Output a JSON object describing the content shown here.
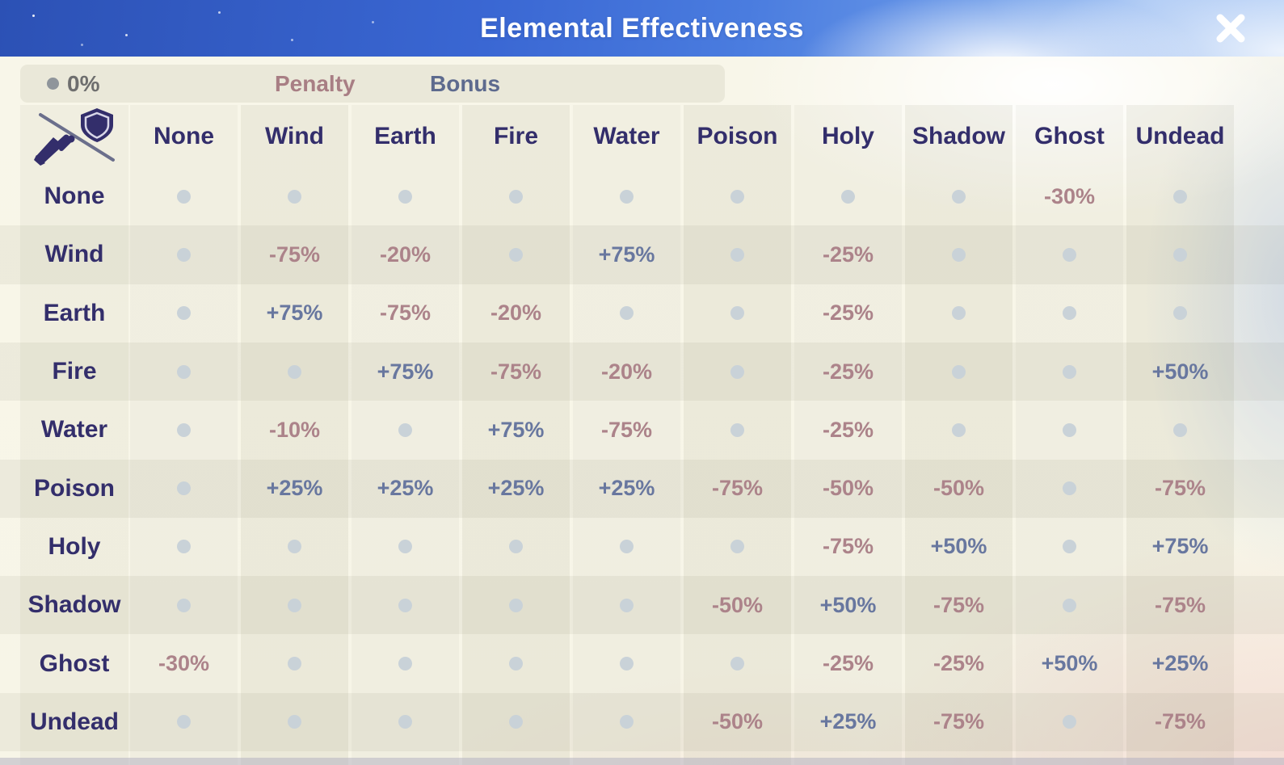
{
  "title": "Elemental Effectiveness",
  "legend": {
    "zero": "0%",
    "penalty": "Penalty",
    "bonus": "Bonus"
  },
  "table": {
    "corner_icon": "sword-vs-shield",
    "columns": [
      "None",
      "Wind",
      "Earth",
      "Fire",
      "Water",
      "Poison",
      "Holy",
      "Shadow",
      "Ghost",
      "Undead"
    ],
    "rows": [
      "None",
      "Wind",
      "Earth",
      "Fire",
      "Water",
      "Poison",
      "Holy",
      "Shadow",
      "Ghost",
      "Undead"
    ],
    "zero_symbol": "dot",
    "cells": [
      [
        "",
        "",
        "",
        "",
        "",
        "",
        "",
        "",
        "-30%",
        ""
      ],
      [
        "",
        "-75%",
        "-20%",
        "",
        "+75%",
        "",
        "-25%",
        "",
        "",
        ""
      ],
      [
        "",
        "+75%",
        "-75%",
        "-20%",
        "",
        "",
        "-25%",
        "",
        "",
        ""
      ],
      [
        "",
        "",
        "+75%",
        "-75%",
        "-20%",
        "",
        "-25%",
        "",
        "",
        "+50%"
      ],
      [
        "",
        "-10%",
        "",
        "+75%",
        "-75%",
        "",
        "-25%",
        "",
        "",
        ""
      ],
      [
        "",
        "+25%",
        "+25%",
        "+25%",
        "+25%",
        "-75%",
        "-50%",
        "-50%",
        "",
        "-75%"
      ],
      [
        "",
        "",
        "",
        "",
        "",
        "",
        "-75%",
        "+50%",
        "",
        "+75%"
      ],
      [
        "",
        "",
        "",
        "",
        "",
        "-50%",
        "+50%",
        "-75%",
        "",
        "-75%"
      ],
      [
        "-30%",
        "",
        "",
        "",
        "",
        "",
        "-25%",
        "-25%",
        "+50%",
        "+25%"
      ],
      [
        "",
        "",
        "",
        "",
        "",
        "-50%",
        "+25%",
        "-75%",
        "",
        "-75%"
      ]
    ]
  },
  "colors": {
    "penalty": "#ac838a",
    "bonus": "#68779f",
    "label_navy": "#332e6b",
    "zero_dot": "#c9d2d8",
    "panel_cream": "#f8f6e9",
    "sky_blue": "#3a67d3"
  }
}
